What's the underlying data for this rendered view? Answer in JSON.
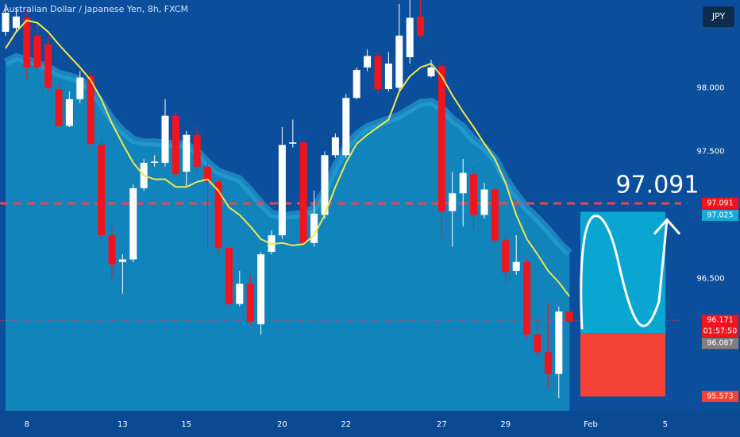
{
  "chart_data": {
    "type": "candlestick",
    "title": "Australian Dollar / Japanese Yen, 8h, FXCM",
    "currency": "JPY",
    "ylim": [
      95.46,
      98.69
    ],
    "yticks": [
      {
        "value": 96.5,
        "label": "96.500"
      },
      {
        "value": 97.5,
        "label": "97.500"
      },
      {
        "value": 98,
        "label": "98.000"
      }
    ],
    "xticks": [
      {
        "value": 2,
        "label": "8"
      },
      {
        "value": 11,
        "label": "13"
      },
      {
        "value": 17,
        "label": "15"
      },
      {
        "value": 26,
        "label": "20"
      },
      {
        "value": 32,
        "label": "22"
      },
      {
        "value": 41,
        "label": "27"
      },
      {
        "value": 47,
        "label": "29"
      },
      {
        "value": 55,
        "label": "Feb"
      },
      {
        "value": 62,
        "label": "5"
      }
    ],
    "up_color": "#ffffff",
    "down_color": "#f0141e",
    "open": [
      98.44,
      98.47,
      98.55,
      98.41,
      98.34,
      97.99,
      97.7,
      97.91,
      98.09,
      97.55,
      96.84,
      96.63,
      96.65,
      97.21,
      97.41,
      97.41,
      97.78,
      97.34,
      97.63,
      97.38,
      97.26,
      96.74,
      96.3,
      96.46,
      96.14,
      96.71,
      96.84,
      97.56,
      97.57,
      96.78,
      97.0,
      97.47,
      97.47,
      97.92,
      98.16,
      98.25,
      97.99,
      98.0,
      98.24,
      98.56,
      98.09,
      98.17,
      97.03,
      97.17,
      97.32,
      97.0,
      97.2,
      96.8,
      96.56,
      96.63,
      96.06,
      95.92,
      95.75,
      96.24
    ],
    "high": [
      98.66,
      98.63,
      98.61,
      98.5,
      98.41,
      98.03,
      97.97,
      98.13,
      98.13,
      97.59,
      96.91,
      96.69,
      97.24,
      97.44,
      97.47,
      97.91,
      97.81,
      97.66,
      97.69,
      97.41,
      97.28,
      96.75,
      96.56,
      96.53,
      96.71,
      96.88,
      97.69,
      97.75,
      97.59,
      97.19,
      97.5,
      97.64,
      97.95,
      98.16,
      98.3,
      98.28,
      98.28,
      98.66,
      98.69,
      98.69,
      98.22,
      98.2,
      97.34,
      97.44,
      97.38,
      97.25,
      97.22,
      96.84,
      96.84,
      96.66,
      96.19,
      96.31,
      96.28,
      96.25
    ],
    "low": [
      98.41,
      98.44,
      98.06,
      98.13,
      97.97,
      97.69,
      97.69,
      97.88,
      97.53,
      96.81,
      96.5,
      96.38,
      96.63,
      97.19,
      97.38,
      97.38,
      97.3,
      97.22,
      97.34,
      96.75,
      96.7,
      96.28,
      96.28,
      96.13,
      96.06,
      96.69,
      96.81,
      97.53,
      96.75,
      96.75,
      96.97,
      97.45,
      97.45,
      97.91,
      98.13,
      97.95,
      97.97,
      97.97,
      98.19,
      98.39,
      98.08,
      96.81,
      96.75,
      96.91,
      96.88,
      96.97,
      96.78,
      96.47,
      96.53,
      96.03,
      95.89,
      95.64,
      95.56,
      96.14
    ],
    "close": [
      98.59,
      98.56,
      98.16,
      98.16,
      98.0,
      97.7,
      97.91,
      98.08,
      97.56,
      96.84,
      96.61,
      96.65,
      97.21,
      97.41,
      97.42,
      97.78,
      97.32,
      97.63,
      97.38,
      97.26,
      96.74,
      96.3,
      96.46,
      96.16,
      96.69,
      96.84,
      97.55,
      97.57,
      96.78,
      97.01,
      97.47,
      97.61,
      97.92,
      98.14,
      98.25,
      97.99,
      98.19,
      98.41,
      98.55,
      98.41,
      98.16,
      97.03,
      97.17,
      97.33,
      97.0,
      97.2,
      96.8,
      96.55,
      96.63,
      96.06,
      95.92,
      95.75,
      96.24,
      96.16
    ],
    "moving_average": {
      "color": "#f2e64b",
      "values": [
        98.31,
        98.44,
        98.53,
        98.51,
        98.44,
        98.34,
        98.25,
        98.16,
        98.06,
        97.91,
        97.72,
        97.56,
        97.41,
        97.31,
        97.28,
        97.28,
        97.22,
        97.22,
        97.26,
        97.28,
        97.19,
        97.06,
        97.0,
        96.91,
        96.81,
        96.77,
        96.78,
        96.76,
        96.77,
        96.84,
        97.0,
        97.22,
        97.41,
        97.56,
        97.63,
        97.69,
        97.75,
        97.97,
        98.09,
        98.16,
        98.19,
        98.09,
        97.94,
        97.81,
        97.69,
        97.56,
        97.44,
        97.25,
        97.0,
        96.81,
        96.69,
        96.56,
        96.47,
        96.36
      ]
    },
    "area": {
      "color": "#1284bc",
      "values": [
        98.2,
        98.24,
        98.22,
        98.19,
        98.16,
        98.11,
        98.09,
        98.06,
        98.0,
        97.88,
        97.75,
        97.66,
        97.59,
        97.57,
        97.57,
        97.56,
        97.56,
        97.55,
        97.5,
        97.41,
        97.34,
        97.31,
        97.28,
        97.19,
        97.09,
        97.01,
        96.99,
        97.0,
        97.01,
        97.05,
        97.19,
        97.38,
        97.53,
        97.63,
        97.69,
        97.72,
        97.75,
        97.78,
        97.83,
        97.88,
        97.89,
        97.84,
        97.75,
        97.69,
        97.59,
        97.53,
        97.44,
        97.28,
        97.16,
        97.05,
        96.97,
        96.88,
        96.78,
        96.7
      ]
    },
    "target_line": {
      "value": 97.091,
      "color": "#e5474d"
    },
    "current_price": {
      "value": 96.171,
      "color": "#e5474d"
    },
    "countdown": "01:57:50",
    "position": {
      "target": 97.025,
      "entry": 96.07,
      "stop": 95.573,
      "profit_color": "#0aa6d2",
      "loss_color": "#f44336"
    },
    "price_labels": [
      {
        "value": 97.091,
        "color": "#f0141e"
      },
      {
        "value": 97.025,
        "color": "#18aad8"
      },
      {
        "value": 96.171,
        "color": "#f0141e"
      },
      {
        "value": 96.087,
        "color": "#808080"
      },
      {
        "value": 95.573,
        "color": "#f44336"
      }
    ]
  }
}
